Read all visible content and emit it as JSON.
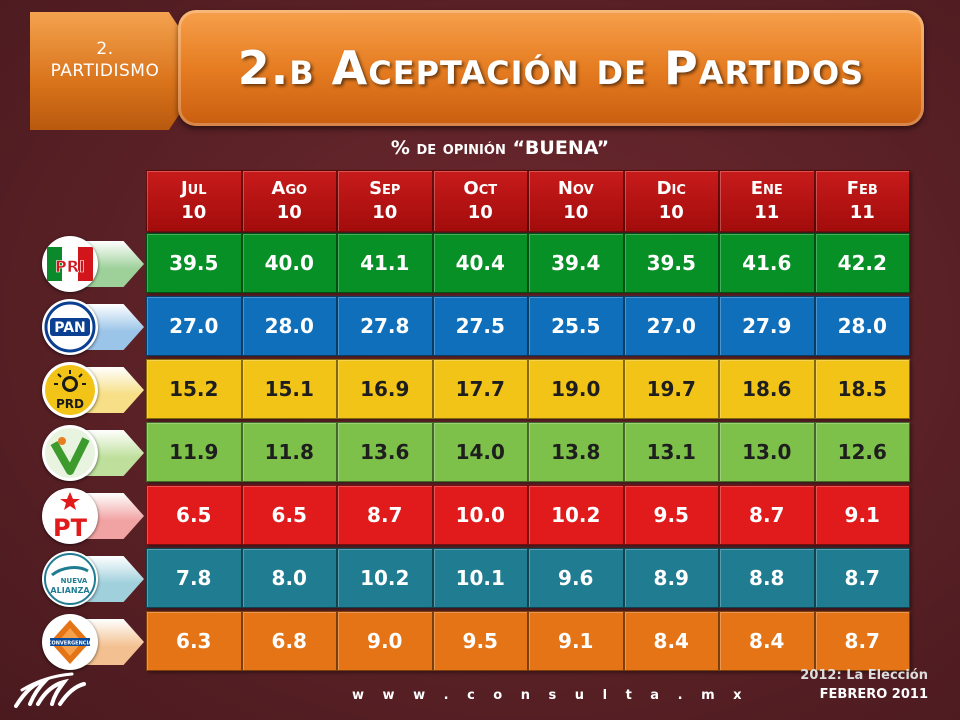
{
  "section": {
    "number": "2.",
    "name": "PARTIDISMO"
  },
  "title": "2.b Aceptación de Partidos",
  "subtitle": "% de opinión “BUENA”",
  "months": [
    {
      "month": "Jul",
      "year": "10"
    },
    {
      "month": "Ago",
      "year": "10"
    },
    {
      "month": "Sep",
      "year": "10"
    },
    {
      "month": "Oct",
      "year": "10"
    },
    {
      "month": "Nov",
      "year": "10"
    },
    {
      "month": "Dic",
      "year": "10"
    },
    {
      "month": "Ene",
      "year": "11"
    },
    {
      "month": "Feb",
      "year": "11"
    }
  ],
  "parties": [
    {
      "name": "PRI",
      "logo": "pri-logo-icon",
      "color": "#079025",
      "arrow": "#9ed19a",
      "text_dark": false,
      "values": [
        "39.5",
        "40.0",
        "41.1",
        "40.4",
        "39.4",
        "39.5",
        "41.6",
        "42.2"
      ]
    },
    {
      "name": "PAN",
      "logo": "pan-logo-icon",
      "color": "#0f6fbb",
      "arrow": "#9ac4e8",
      "text_dark": false,
      "values": [
        "27.0",
        "28.0",
        "27.8",
        "27.5",
        "25.5",
        "27.0",
        "27.9",
        "28.0"
      ]
    },
    {
      "name": "PRD",
      "logo": "prd-logo-icon",
      "color": "#f2c417",
      "arrow": "#f6df86",
      "text_dark": true,
      "values": [
        "15.2",
        "15.1",
        "16.9",
        "17.7",
        "19.0",
        "19.7",
        "18.6",
        "18.5"
      ]
    },
    {
      "name": "PVEM",
      "logo": "pvem-logo-icon",
      "color": "#7dc04a",
      "arrow": "#bfe09c",
      "text_dark": true,
      "values": [
        "11.9",
        "11.8",
        "13.6",
        "14.0",
        "13.8",
        "13.1",
        "13.0",
        "12.6"
      ]
    },
    {
      "name": "PT",
      "logo": "pt-logo-icon",
      "color": "#e11b1b",
      "arrow": "#f1a2a2",
      "text_dark": false,
      "values": [
        "6.5",
        "6.5",
        "8.7",
        "10.0",
        "10.2",
        "9.5",
        "8.7",
        "9.1"
      ]
    },
    {
      "name": "Nueva Alianza",
      "logo": "nueva-alianza-logo-icon",
      "color": "#1f7c91",
      "arrow": "#9fd0dc",
      "text_dark": false,
      "values": [
        "7.8",
        "8.0",
        "10.2",
        "10.1",
        "9.6",
        "8.9",
        "8.8",
        "8.7"
      ]
    },
    {
      "name": "Convergencia",
      "logo": "convergencia-logo-icon",
      "color": "#e47415",
      "arrow": "#f3c191",
      "text_dark": false,
      "values": [
        "6.3",
        "6.8",
        "9.0",
        "9.5",
        "9.1",
        "8.4",
        "8.4",
        "8.7"
      ]
    }
  ],
  "footer": {
    "url": "w w w . c o n s u l t a . m x",
    "line1": "2012: La Elección",
    "line2": "FEBRERO 2011"
  },
  "logo_text": {
    "pri": "PRI",
    "pan": "PAN",
    "prd": "PRD",
    "pvem": "V",
    "pt": "PT",
    "na_1": "NUEVA",
    "na_2": "ALIANZA",
    "conv": "CONVERGENCIA"
  }
}
